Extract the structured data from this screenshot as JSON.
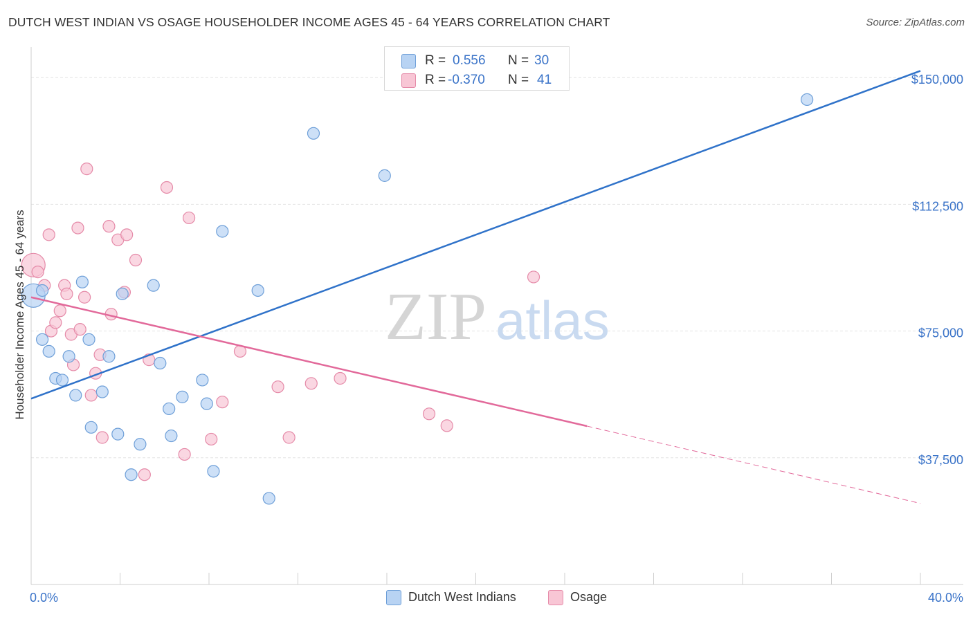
{
  "title": "DUTCH WEST INDIAN VS OSAGE HOUSEHOLDER INCOME AGES 45 - 64 YEARS CORRELATION CHART",
  "source": "Source: ZipAtlas.com",
  "watermark": {
    "zip": "ZIP",
    "atlas": "atlas"
  },
  "legend": {
    "r_label": "R =",
    "n_label": "N =",
    "rows": [
      {
        "name": "Dutch West Indians",
        "r": "0.556",
        "n": "30"
      },
      {
        "name": "Osage",
        "r": "-0.370",
        "n": "41"
      }
    ]
  },
  "colors": {
    "blue_fill": "#b8d3f3",
    "blue_stroke": "#6e9fd8",
    "blue_line": "#2f72c9",
    "pink_fill": "#f8c6d5",
    "pink_stroke": "#e58aa8",
    "pink_line": "#e2699a",
    "tick_label": "#3a73c8"
  },
  "chart_data": {
    "type": "scatter",
    "title": "DUTCH WEST INDIAN VS OSAGE HOUSEHOLDER INCOME AGES 45 - 64 YEARS CORRELATION CHART",
    "xlabel": "",
    "ylabel": "Householder Income Ages 45 - 64 years",
    "xlim": [
      0,
      40
    ],
    "ylim": [
      0,
      157000
    ],
    "x_tick_labels": [
      "0.0%",
      "40.0%"
    ],
    "y_ticks": [
      37500,
      75000,
      112500,
      150000
    ],
    "y_tick_labels": [
      "$37,500",
      "$75,000",
      "$112,500",
      "$150,000"
    ],
    "series": [
      {
        "name": "Dutch West Indians",
        "color": "#6e9fd8",
        "trend": {
          "x0": 0,
          "y0": 55000,
          "x1": 40,
          "y1": 152000,
          "solid_until": 40
        },
        "points": [
          [
            0.1,
            85500,
            "big"
          ],
          [
            0.5,
            87000
          ],
          [
            0.5,
            72500
          ],
          [
            0.8,
            69000
          ],
          [
            1.1,
            61000
          ],
          [
            1.4,
            60500
          ],
          [
            1.7,
            67500
          ],
          [
            2.0,
            56000
          ],
          [
            2.3,
            89500
          ],
          [
            2.6,
            72500
          ],
          [
            2.7,
            46500
          ],
          [
            3.2,
            57000
          ],
          [
            3.5,
            67500
          ],
          [
            3.9,
            44500
          ],
          [
            4.1,
            86000
          ],
          [
            4.5,
            32500
          ],
          [
            4.9,
            41500
          ],
          [
            5.5,
            88500
          ],
          [
            5.8,
            65500
          ],
          [
            6.2,
            52000
          ],
          [
            6.3,
            44000
          ],
          [
            6.8,
            55500
          ],
          [
            7.7,
            60500
          ],
          [
            7.9,
            53500
          ],
          [
            8.2,
            33500
          ],
          [
            8.6,
            104500
          ],
          [
            10.2,
            87000
          ],
          [
            10.7,
            25500
          ],
          [
            12.7,
            133500
          ],
          [
            15.9,
            121000
          ],
          [
            34.9,
            143500
          ]
        ]
      },
      {
        "name": "Osage",
        "color": "#e58aa8",
        "trend": {
          "x0": 0,
          "y0": 85000,
          "x1": 40,
          "y1": 24000,
          "solid_until": 25
        }
      }
    ],
    "osage_points": [
      [
        0.1,
        94500,
        "big"
      ],
      [
        0.3,
        92500
      ],
      [
        0.6,
        88500
      ],
      [
        0.8,
        103500
      ],
      [
        0.9,
        75000
      ],
      [
        1.1,
        77500
      ],
      [
        1.3,
        81000
      ],
      [
        1.5,
        88500
      ],
      [
        1.6,
        86000
      ],
      [
        1.8,
        74000
      ],
      [
        1.9,
        65000
      ],
      [
        2.1,
        105500
      ],
      [
        2.2,
        75500
      ],
      [
        2.4,
        85000
      ],
      [
        2.5,
        123000
      ],
      [
        2.7,
        56000
      ],
      [
        2.9,
        62500
      ],
      [
        3.1,
        68000
      ],
      [
        3.2,
        43500
      ],
      [
        3.5,
        106000
      ],
      [
        3.6,
        80000
      ],
      [
        3.9,
        102000
      ],
      [
        4.2,
        86500
      ],
      [
        4.3,
        103500
      ],
      [
        4.7,
        96000
      ],
      [
        5.1,
        32500
      ],
      [
        5.3,
        66500
      ],
      [
        6.1,
        117500
      ],
      [
        6.9,
        38500
      ],
      [
        7.1,
        108500
      ],
      [
        8.1,
        43000
      ],
      [
        8.6,
        54000
      ],
      [
        9.4,
        69000
      ],
      [
        11.1,
        58500
      ],
      [
        11.6,
        43500
      ],
      [
        12.6,
        59500
      ],
      [
        13.9,
        61000
      ],
      [
        17.9,
        50500
      ],
      [
        18.7,
        47000
      ],
      [
        22.6,
        91000
      ]
    ]
  }
}
